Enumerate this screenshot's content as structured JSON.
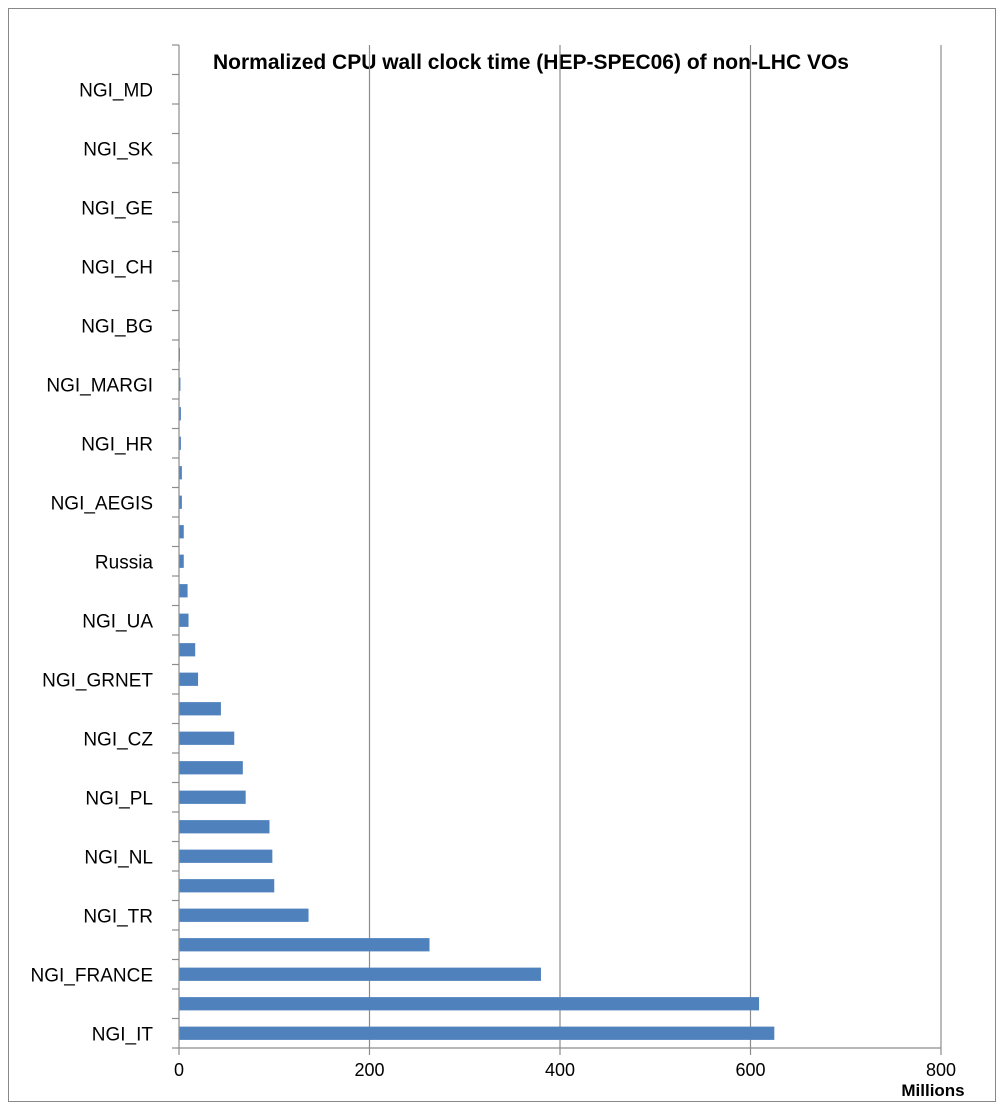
{
  "chart_data": {
    "type": "bar",
    "orientation": "horizontal",
    "title": "Normalized CPU wall clock time (HEP-SPEC06) of non-LHC VOs",
    "xlabel": "Millions",
    "ylabel": "",
    "xlim": [
      0,
      800
    ],
    "xticks": [
      0,
      200,
      400,
      600,
      800
    ],
    "grid": "vertical",
    "legend": "none",
    "bar_color": "#4f81bd",
    "categories_bottom_to_top": [
      "NGI_IT",
      "",
      "NGI_FRANCE",
      "",
      "NGI_TR",
      "",
      "NGI_NL",
      "",
      "NGI_PL",
      "",
      "NGI_CZ",
      "",
      "NGI_GRNET",
      "",
      "NGI_UA",
      "",
      "Russia",
      "",
      "NGI_AEGIS",
      "",
      "NGI_HR",
      "",
      "NGI_MARGI",
      "",
      "NGI_BG",
      "",
      "NGI_CH",
      "",
      "NGI_GE",
      "",
      "NGI_SK",
      "",
      "NGI_MD",
      ""
    ],
    "values": [
      625,
      609,
      380,
      263,
      136,
      100,
      98,
      95,
      70,
      67,
      58,
      44,
      20,
      17,
      10,
      9,
      5,
      5,
      3,
      3,
      2,
      2,
      1.5,
      1,
      0.5,
      0.4,
      0.3,
      0.2,
      0.2,
      0.1,
      0.1,
      0.1,
      0.05,
      0.05
    ]
  }
}
